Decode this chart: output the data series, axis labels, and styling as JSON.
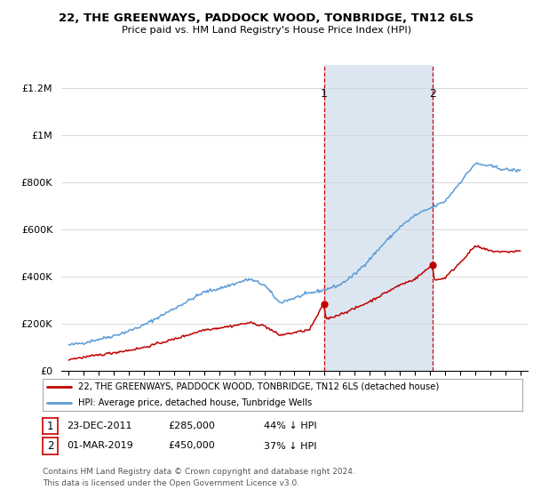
{
  "title": "22, THE GREENWAYS, PADDOCK WOOD, TONBRIDGE, TN12 6LS",
  "subtitle": "Price paid vs. HM Land Registry's House Price Index (HPI)",
  "ylim": [
    0,
    1300000
  ],
  "yticks": [
    0,
    200000,
    400000,
    600000,
    800000,
    1000000,
    1200000
  ],
  "ytick_labels": [
    "£0",
    "£200K",
    "£400K",
    "£600K",
    "£800K",
    "£1M",
    "£1.2M"
  ],
  "legend_line1": "22, THE GREENWAYS, PADDOCK WOOD, TONBRIDGE, TN12 6LS (detached house)",
  "legend_line2": "HPI: Average price, detached house, Tunbridge Wells",
  "sale1_date": "23-DEC-2011",
  "sale1_price": "£285,000",
  "sale1_pct": "44% ↓ HPI",
  "sale2_date": "01-MAR-2019",
  "sale2_price": "£450,000",
  "sale2_pct": "37% ↓ HPI",
  "footer1": "Contains HM Land Registry data © Crown copyright and database right 2024.",
  "footer2": "This data is licensed under the Open Government Licence v3.0.",
  "hpi_color": "#5b9bd5",
  "price_color": "#c00000",
  "shade_color": "#dce6f1",
  "vline_color": "#cc0000",
  "background_color": "#ffffff",
  "grid_color": "#d3d3d3",
  "hpi_key_years": [
    1995,
    1996,
    1997,
    1998,
    1999,
    2000,
    2001,
    2002,
    2003,
    2004,
    2005,
    2006,
    2007,
    2008,
    2009,
    2010,
    2011,
    2012,
    2013,
    2014,
    2015,
    2016,
    2017,
    2018,
    2019,
    2020,
    2021,
    2022,
    2023,
    2024,
    2025
  ],
  "hpi_key_vals": [
    110000,
    120000,
    135000,
    150000,
    170000,
    195000,
    230000,
    265000,
    300000,
    335000,
    350000,
    370000,
    390000,
    365000,
    290000,
    310000,
    330000,
    345000,
    365000,
    410000,
    475000,
    545000,
    610000,
    660000,
    690000,
    720000,
    800000,
    880000,
    870000,
    855000,
    850000
  ],
  "price_key_years": [
    1995,
    1996,
    1997,
    1998,
    1999,
    2000,
    2001,
    2002,
    2003,
    2004,
    2005,
    2006,
    2007,
    2008,
    2009,
    2010,
    2011.0,
    2011.95,
    2012.1,
    2013,
    2014,
    2015,
    2016,
    2017,
    2018,
    2019.17,
    2019.3,
    2020,
    2021,
    2022,
    2023,
    2024,
    2025
  ],
  "price_key_vals": [
    50000,
    58000,
    68000,
    78000,
    88000,
    100000,
    118000,
    135000,
    155000,
    175000,
    183000,
    193000,
    205000,
    192000,
    152000,
    163000,
    175000,
    285000,
    220000,
    240000,
    265000,
    295000,
    330000,
    365000,
    390000,
    450000,
    385000,
    395000,
    460000,
    530000,
    510000,
    505000,
    510000
  ]
}
